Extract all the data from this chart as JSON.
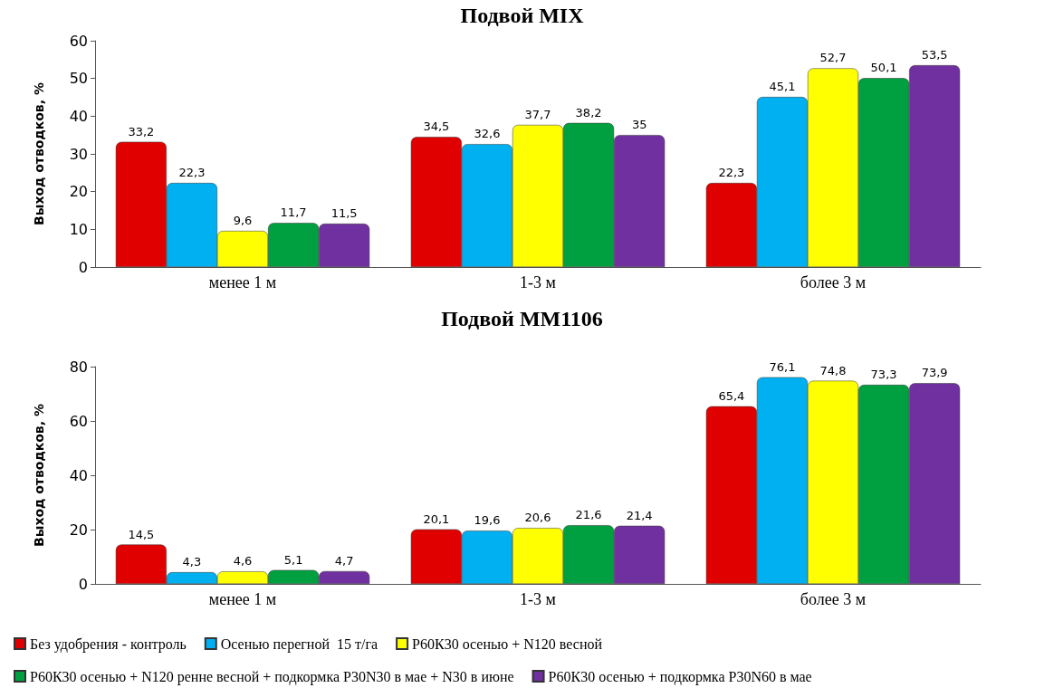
{
  "chart_data": [
    {
      "type": "bar",
      "title": "Подвой MIX",
      "ylabel": "Выход отводков, %",
      "categories": [
        "менее 1 м",
        "1-3 м",
        "более 3 м"
      ],
      "ylim": [
        0,
        60
      ],
      "yticks": [
        0,
        10,
        20,
        30,
        40,
        50,
        60
      ],
      "grid": false,
      "legend": false,
      "series": [
        {
          "color": "#e00000",
          "values": [
            33.2,
            34.5,
            22.3
          ],
          "value_labels": [
            "33,2",
            "34,5",
            "22,3"
          ]
        },
        {
          "color": "#00b0f0",
          "values": [
            22.3,
            32.6,
            45.1
          ],
          "value_labels": [
            "22,3",
            "32,6",
            "45,1"
          ]
        },
        {
          "color": "#ffff00",
          "values": [
            9.6,
            37.7,
            52.7
          ],
          "value_labels": [
            "9,6",
            "37,7",
            "52,7"
          ]
        },
        {
          "color": "#00a040",
          "values": [
            11.7,
            38.2,
            50.1
          ],
          "value_labels": [
            "11,7",
            "38,2",
            "50,1"
          ]
        },
        {
          "color": "#7030a0",
          "values": [
            11.5,
            35,
            53.5
          ],
          "value_labels": [
            "11,5",
            "35",
            "53,5"
          ]
        }
      ]
    },
    {
      "type": "bar",
      "title": "Подвой ММ1106",
      "ylabel": "Выход отводков, %",
      "categories": [
        "менее 1 м",
        "1-3 м",
        "более 3 м"
      ],
      "ylim": [
        0,
        80
      ],
      "yticks": [
        0,
        20,
        40,
        60,
        80
      ],
      "grid": false,
      "legend": "bottom",
      "series": [
        {
          "name": "Без удобрения - контроль",
          "color": "#e00000",
          "values": [
            14.5,
            20.1,
            65.4
          ],
          "value_labels": [
            "14,5",
            "20,1",
            "65,4"
          ]
        },
        {
          "name": "Осенью перегной  15 т/га",
          "color": "#00b0f0",
          "values": [
            4.3,
            19.6,
            76.1
          ],
          "value_labels": [
            "4,3",
            "19,6",
            "76,1"
          ]
        },
        {
          "name": "Р60К30 осенью + N120 весной",
          "color": "#ffff00",
          "values": [
            4.6,
            20.6,
            74.8
          ],
          "value_labels": [
            "4,6",
            "20,6",
            "74,8"
          ]
        },
        {
          "name": "Р60К30 осенью + N120 ренне весной + подкормка Р30N30 в мае + N30 в июне",
          "color": "#00a040",
          "values": [
            5.1,
            21.6,
            73.3
          ],
          "value_labels": [
            "5,1",
            "21,6",
            "73,3"
          ]
        },
        {
          "name": "Р60К30 осенью + подкормка Р30N60 в мае",
          "color": "#7030a0",
          "values": [
            4.7,
            21.4,
            73.9
          ],
          "value_labels": [
            "4,7",
            "21,4",
            "73,9"
          ]
        }
      ]
    }
  ]
}
